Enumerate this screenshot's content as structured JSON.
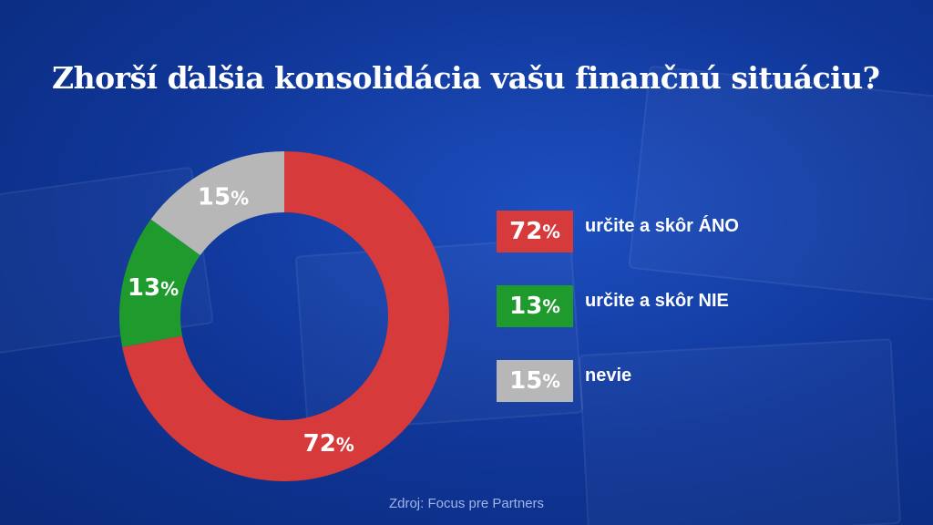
{
  "title": "Zhorší ďalšia konsolidácia vašu finančnú situáciu?",
  "source": "Zdroj: Focus pre Partners",
  "colors": {
    "ano": "#d63a3a",
    "nie": "#1f9a2c",
    "nevie": "#b7b7b7"
  },
  "chart_data": {
    "type": "pie",
    "variant": "donut",
    "title": "Zhorší ďalšia konsolidácia vašu finančnú situáciu?",
    "series": [
      {
        "name": "určite a skôr ÁNO",
        "value": 72,
        "label": "72",
        "color": "#d63a3a"
      },
      {
        "name": "určite a skôr NIE",
        "value": 13,
        "label": "13",
        "color": "#1f9a2c"
      },
      {
        "name": "nevie",
        "value": 15,
        "label": "15",
        "color": "#b7b7b7"
      }
    ],
    "unit": "%",
    "legend_position": "right"
  },
  "legend": [
    {
      "value": "72",
      "unit": "%",
      "label": "určite a skôr ÁNO"
    },
    {
      "value": "13",
      "unit": "%",
      "label": "určite a skôr NIE"
    },
    {
      "value": "15",
      "unit": "%",
      "label": "nevie"
    }
  ]
}
